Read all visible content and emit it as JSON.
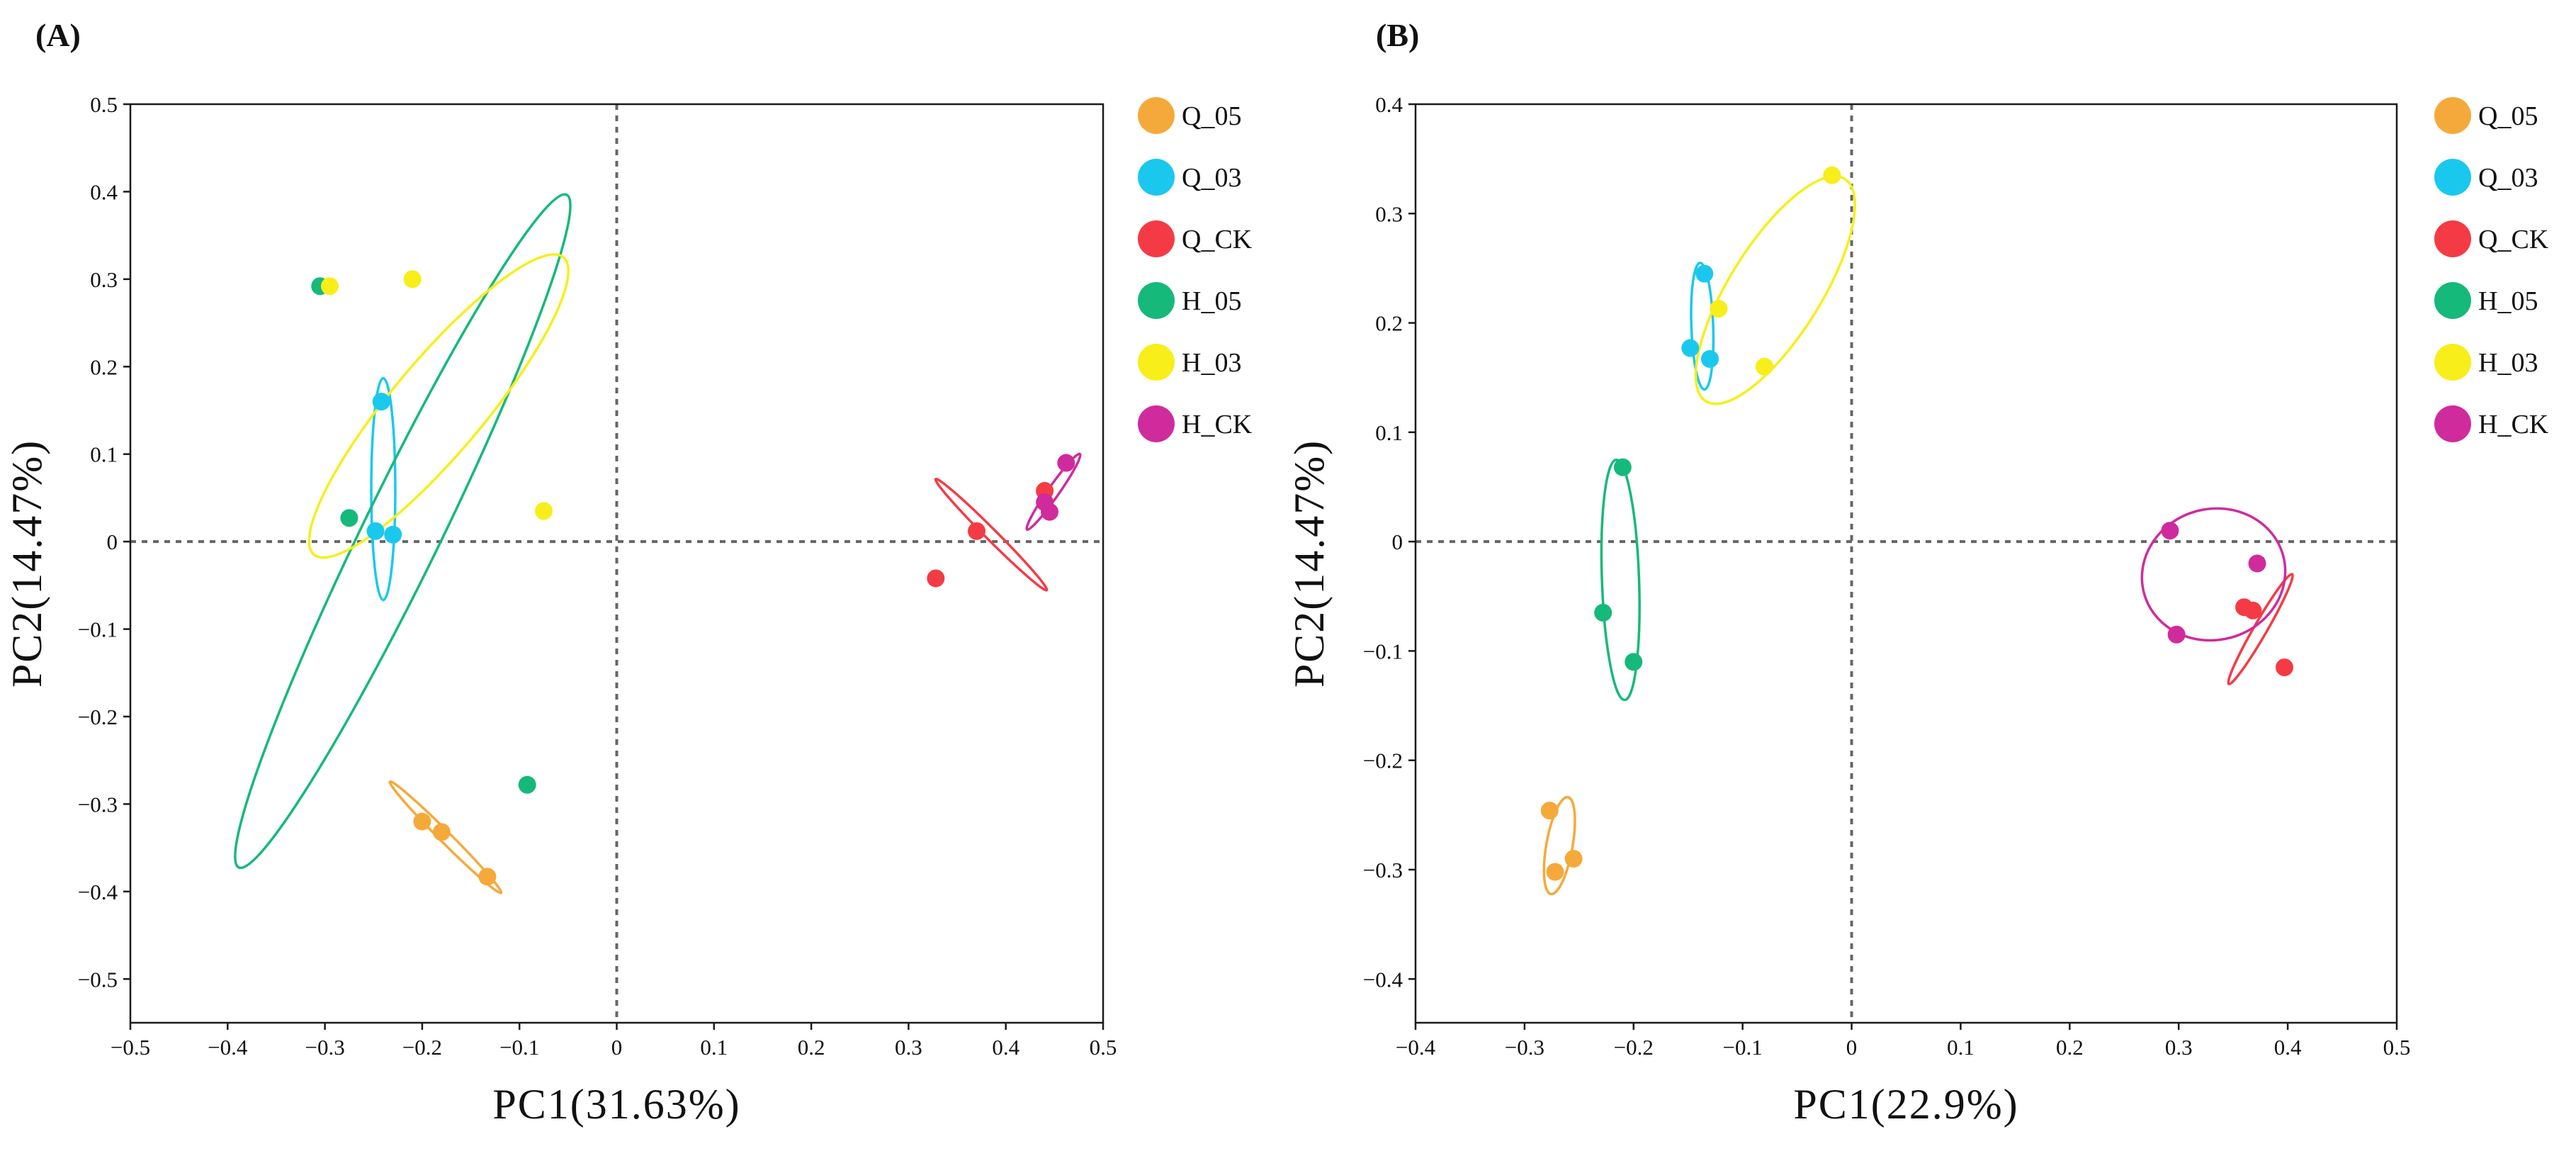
{
  "chart_data": [
    {
      "type": "scatter",
      "panel_label": "(A)",
      "xlabel": "PC1(31.63%)",
      "ylabel": "PC2(14.47%)",
      "xlim": [
        -0.5,
        0.5
      ],
      "ylim": [
        -0.55,
        0.5
      ],
      "xticks": [
        -0.5,
        -0.4,
        -0.3,
        -0.2,
        -0.1,
        0,
        0.1,
        0.2,
        0.3,
        0.4,
        0.5
      ],
      "xtick_labels": [
        "−0.5",
        "−0.4",
        "−0.3",
        "−0.2",
        "−0.1",
        "0",
        "0.1",
        "0.2",
        "0.3",
        "0.4",
        "0.5"
      ],
      "yticks": [
        -0.5,
        -0.4,
        -0.3,
        -0.2,
        -0.1,
        0,
        0.1,
        0.2,
        0.3,
        0.4,
        0.5
      ],
      "ytick_labels": [
        "−0.5",
        "−0.4",
        "−0.3",
        "−0.2",
        "−0.1",
        "0",
        "0.1",
        "0.2",
        "0.3",
        "0.4",
        "0.5"
      ],
      "zero_lines": true,
      "legend_position": "right",
      "series": [
        {
          "name": "Q_05",
          "color": "#F5A93A",
          "points": [
            [
              -0.2,
              -0.32
            ],
            [
              -0.18,
              -0.332
            ],
            [
              -0.133,
              -0.383
            ]
          ],
          "ellipse": {
            "cx": -0.176,
            "cy": -0.338,
            "rx": 0.085,
            "ry": 0.006,
            "angle": -45
          }
        },
        {
          "name": "Q_03",
          "color": "#1AC8EE",
          "points": [
            [
              -0.242,
              0.16
            ],
            [
              -0.248,
              0.012
            ],
            [
              -0.23,
              0.008
            ]
          ],
          "ellipse": {
            "cx": -0.24,
            "cy": 0.06,
            "rx": 0.013,
            "ry": 0.12,
            "angle": 0
          }
        },
        {
          "name": "Q_CK",
          "color": "#F43B45",
          "points": [
            [
              0.37,
              0.012
            ],
            [
              0.328,
              -0.042
            ],
            [
              0.44,
              0.058
            ]
          ],
          "ellipse": {
            "cx": 0.385,
            "cy": 0.008,
            "rx": 0.085,
            "ry": 0.006,
            "angle": -45
          }
        },
        {
          "name": "H_05",
          "color": "#15B97A",
          "points": [
            [
              -0.305,
              0.292
            ],
            [
              -0.275,
              0.027
            ],
            [
              -0.092,
              -0.278
            ]
          ],
          "ellipse": {
            "cx": -0.22,
            "cy": 0.012,
            "rx": 0.405,
            "ry": 0.042,
            "angle": 64
          }
        },
        {
          "name": "H_03",
          "color": "#F7EE1A",
          "points": [
            [
              -0.295,
              0.292
            ],
            [
              -0.21,
              0.3
            ],
            [
              -0.075,
              0.035
            ]
          ],
          "ellipse": {
            "cx": -0.183,
            "cy": 0.155,
            "rx": 0.21,
            "ry": 0.05,
            "angle": 50
          }
        },
        {
          "name": "H_CK",
          "color": "#CF2B9C",
          "points": [
            [
              0.462,
              0.09
            ],
            [
              0.44,
              0.045
            ],
            [
              0.445,
              0.034
            ]
          ],
          "ellipse": {
            "cx": 0.449,
            "cy": 0.057,
            "rx": 0.05,
            "ry": 0.006,
            "angle": 55
          }
        }
      ]
    },
    {
      "type": "scatter",
      "panel_label": "(B)",
      "xlabel": "PC1(22.9%)",
      "ylabel": "PC2(14.47%)",
      "xlim": [
        -0.4,
        0.5
      ],
      "ylim": [
        -0.44,
        0.4
      ],
      "xticks": [
        -0.4,
        -0.3,
        -0.2,
        -0.1,
        0,
        0.1,
        0.2,
        0.3,
        0.4,
        0.5
      ],
      "xtick_labels": [
        "−0.4",
        "−0.3",
        "−0.2",
        "−0.1",
        "0",
        "0.1",
        "0.2",
        "0.3",
        "0.4",
        "0.5"
      ],
      "yticks": [
        -0.4,
        -0.3,
        -0.2,
        -0.1,
        0,
        0.1,
        0.2,
        0.3,
        0.4
      ],
      "ytick_labels": [
        "−0.4",
        "−0.3",
        "−0.2",
        "−0.1",
        "0",
        "0.1",
        "0.2",
        "0.3",
        "0.4"
      ],
      "zero_lines": true,
      "legend_position": "right",
      "series": [
        {
          "name": "Q_05",
          "color": "#F5A93A",
          "points": [
            [
              -0.277,
              -0.246
            ],
            [
              -0.272,
              -0.302
            ],
            [
              -0.255,
              -0.29
            ]
          ],
          "ellipse": {
            "cx": -0.268,
            "cy": -0.278,
            "rx": 0.045,
            "ry": 0.012,
            "angle": 80
          }
        },
        {
          "name": "Q_03",
          "color": "#1AC8EE",
          "points": [
            [
              -0.135,
              0.245
            ],
            [
              -0.148,
              0.177
            ],
            [
              -0.13,
              0.167
            ]
          ],
          "ellipse": {
            "cx": -0.137,
            "cy": 0.197,
            "rx": 0.058,
            "ry": 0.01,
            "angle": 92
          }
        },
        {
          "name": "Q_CK",
          "color": "#F43B45",
          "points": [
            [
              0.36,
              -0.06
            ],
            [
              0.368,
              -0.063
            ],
            [
              0.397,
              -0.115
            ]
          ],
          "ellipse": {
            "cx": 0.375,
            "cy": -0.08,
            "rx": 0.058,
            "ry": 0.006,
            "angle": 60
          }
        },
        {
          "name": "H_05",
          "color": "#15B97A",
          "points": [
            [
              -0.21,
              0.068
            ],
            [
              -0.228,
              -0.065
            ],
            [
              -0.2,
              -0.11
            ]
          ],
          "ellipse": {
            "cx": -0.212,
            "cy": -0.035,
            "rx": 0.11,
            "ry": 0.017,
            "angle": 92
          }
        },
        {
          "name": "H_03",
          "color": "#F7EE1A",
          "points": [
            [
              -0.018,
              0.335
            ],
            [
              -0.122,
              0.213
            ],
            [
              -0.08,
              0.16
            ]
          ],
          "ellipse": {
            "cx": -0.07,
            "cy": 0.23,
            "rx": 0.12,
            "ry": 0.042,
            "angle": 58
          }
        },
        {
          "name": "H_CK",
          "color": "#CF2B9C",
          "points": [
            [
              0.292,
              0.01
            ],
            [
              0.372,
              -0.02
            ],
            [
              0.298,
              -0.085
            ]
          ],
          "ellipse": {
            "cx": 0.332,
            "cy": -0.03,
            "rx": 0.066,
            "ry": 0.06,
            "angle": 15
          }
        }
      ]
    }
  ]
}
